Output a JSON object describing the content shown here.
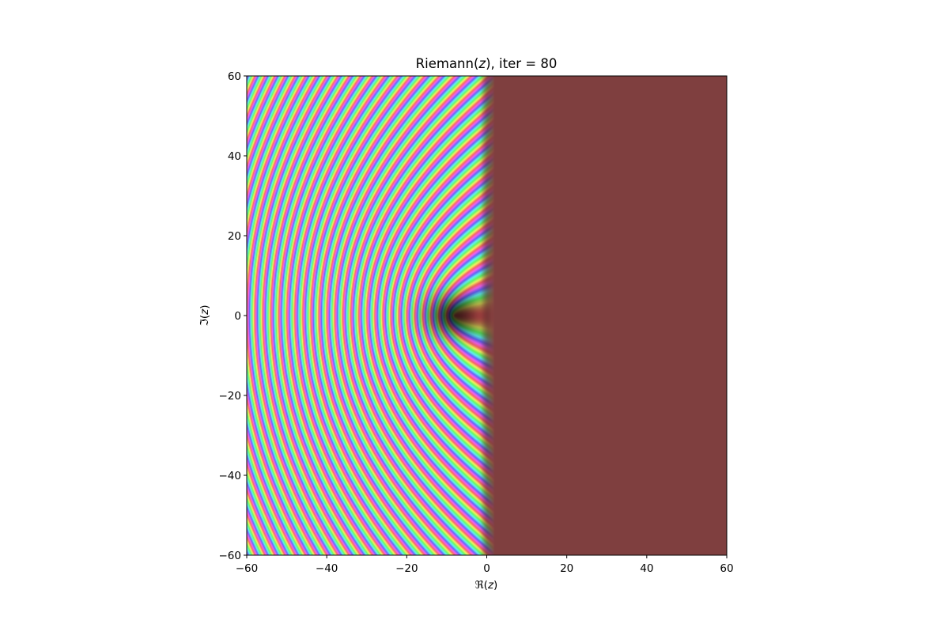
{
  "chart_data": {
    "type": "heatmap",
    "title": "Riemann(",
    "title_var": "z",
    "title_suffix": "), iter = 80",
    "xlabel_prefix": "ℜ(",
    "xlabel_var": "z",
    "xlabel_suffix": ")",
    "ylabel_prefix": "ℑ(",
    "ylabel_var": "z",
    "ylabel_suffix": ")",
    "xlim": [
      -60,
      60
    ],
    "ylim": [
      -60,
      60
    ],
    "xticks": [
      -60,
      -40,
      -20,
      0,
      20,
      40,
      60
    ],
    "yticks": [
      -60,
      -40,
      -20,
      0,
      20,
      40,
      60
    ],
    "xtick_labels": [
      "−60",
      "−40",
      "−20",
      "0",
      "20",
      "40",
      "60"
    ],
    "ytick_labels": [
      "−60",
      "−40",
      "−20",
      "0",
      "20",
      "40",
      "60"
    ],
    "grid": false,
    "colors": {
      "converged_region": "#7f3f3f"
    }
  }
}
